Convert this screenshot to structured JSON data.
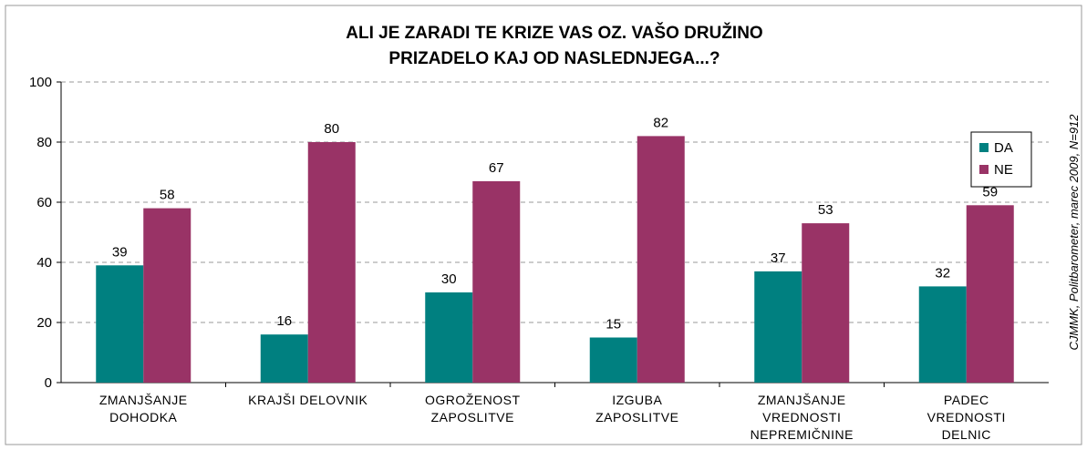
{
  "chart_data": {
    "type": "bar",
    "title": [
      "ALI JE ZARADI TE KRIZE VAS OZ. VAŠO DRUŽINO",
      "PRIZADELO KAJ OD NASLEDNJEGA...?"
    ],
    "source": "CJMMK, Politbarometer, marec 2009, N=912",
    "categories": [
      [
        "ZMANJŠANJE",
        "DOHODKA"
      ],
      [
        "KRAJŠI DELOVNIK"
      ],
      [
        "OGROŽENOST",
        "ZAPOSLITVE"
      ],
      [
        "IZGUBA",
        "ZAPOSLITVE"
      ],
      [
        "ZMANJŠANJE",
        "VREDNOSTI",
        "NEPREMIČNINE"
      ],
      [
        "PADEC",
        "VREDNOSTI",
        "DELNIC"
      ]
    ],
    "series": [
      {
        "name": "DA",
        "color": "#008080",
        "values": [
          39,
          16,
          30,
          15,
          37,
          32
        ]
      },
      {
        "name": "NE",
        "color": "#993366",
        "values": [
          58,
          80,
          67,
          82,
          53,
          59
        ]
      }
    ],
    "ylim": [
      0,
      100
    ],
    "yticks": [
      0,
      20,
      40,
      60,
      80,
      100
    ],
    "grid": true,
    "legend": "upper right"
  }
}
